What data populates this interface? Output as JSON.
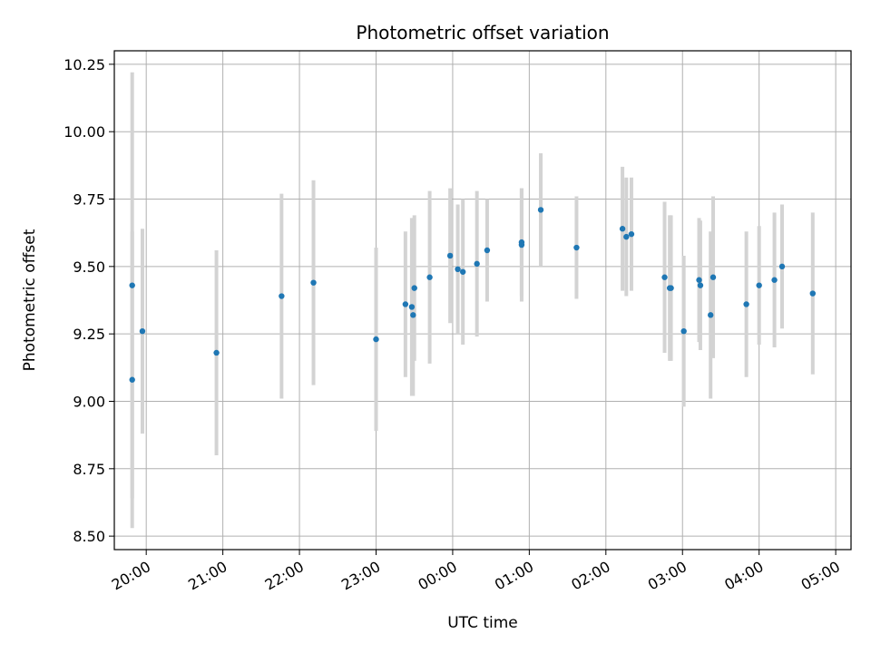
{
  "chart_data": {
    "type": "scatter",
    "title": "Photometric offset variation",
    "xlabel": "UTC time",
    "ylabel": "Photometric offset",
    "grid": true,
    "x_axis_kind": "time",
    "xlim": [
      "19:35",
      "05:12"
    ],
    "ylim": [
      8.45,
      10.3
    ],
    "x_ticks": [
      "20:00",
      "21:00",
      "22:00",
      "23:00",
      "00:00",
      "01:00",
      "02:00",
      "03:00",
      "04:00",
      "05:00"
    ],
    "y_ticks": [
      "8.50",
      "8.75",
      "9.00",
      "9.25",
      "9.50",
      "9.75",
      "10.00",
      "10.25"
    ],
    "point_color": "#1f77b4",
    "errorbar_color": "#d3d3d3",
    "series": [
      {
        "points": [
          {
            "x": "19:49",
            "y": 9.43,
            "err": 0.79
          },
          {
            "x": "19:49",
            "y": 9.08,
            "err": 0.55
          },
          {
            "x": "19:57",
            "y": 9.26,
            "err": 0.38
          },
          {
            "x": "20:55",
            "y": 9.18,
            "err": 0.38
          },
          {
            "x": "21:46",
            "y": 9.39,
            "err": 0.38
          },
          {
            "x": "22:11",
            "y": 9.44,
            "err": 0.38
          },
          {
            "x": "23:00",
            "y": 9.23,
            "err": 0.34
          },
          {
            "x": "23:23",
            "y": 9.36,
            "err": 0.27
          },
          {
            "x": "23:28",
            "y": 9.35,
            "err": 0.33
          },
          {
            "x": "23:29",
            "y": 9.32,
            "err": 0.3
          },
          {
            "x": "23:30",
            "y": 9.42,
            "err": 0.27
          },
          {
            "x": "23:42",
            "y": 9.46,
            "err": 0.32
          },
          {
            "x": "23:58",
            "y": 9.54,
            "err": 0.25
          },
          {
            "x": "00:04",
            "y": 9.49,
            "err": 0.24
          },
          {
            "x": "00:08",
            "y": 9.48,
            "err": 0.27
          },
          {
            "x": "00:19",
            "y": 9.51,
            "err": 0.27
          },
          {
            "x": "00:27",
            "y": 9.56,
            "err": 0.19
          },
          {
            "x": "00:54",
            "y": 9.58,
            "err": 0.21
          },
          {
            "x": "00:54",
            "y": 9.59,
            "err": 0.2
          },
          {
            "x": "01:09",
            "y": 9.71,
            "err": 0.21
          },
          {
            "x": "01:37",
            "y": 9.57,
            "err": 0.19
          },
          {
            "x": "02:13",
            "y": 9.64,
            "err": 0.23
          },
          {
            "x": "02:16",
            "y": 9.61,
            "err": 0.22
          },
          {
            "x": "02:20",
            "y": 9.62,
            "err": 0.21
          },
          {
            "x": "02:46",
            "y": 9.46,
            "err": 0.28
          },
          {
            "x": "02:50",
            "y": 9.42,
            "err": 0.27
          },
          {
            "x": "02:51",
            "y": 9.42,
            "err": 0.27
          },
          {
            "x": "03:01",
            "y": 9.26,
            "err": 0.28
          },
          {
            "x": "03:13",
            "y": 9.45,
            "err": 0.23
          },
          {
            "x": "03:14",
            "y": 9.43,
            "err": 0.24
          },
          {
            "x": "03:22",
            "y": 9.32,
            "err": 0.31
          },
          {
            "x": "03:24",
            "y": 9.46,
            "err": 0.3
          },
          {
            "x": "03:50",
            "y": 9.36,
            "err": 0.27
          },
          {
            "x": "04:00",
            "y": 9.43,
            "err": 0.22
          },
          {
            "x": "04:12",
            "y": 9.45,
            "err": 0.25
          },
          {
            "x": "04:18",
            "y": 9.5,
            "err": 0.23
          },
          {
            "x": "04:42",
            "y": 9.4,
            "err": 0.3
          }
        ]
      }
    ]
  }
}
